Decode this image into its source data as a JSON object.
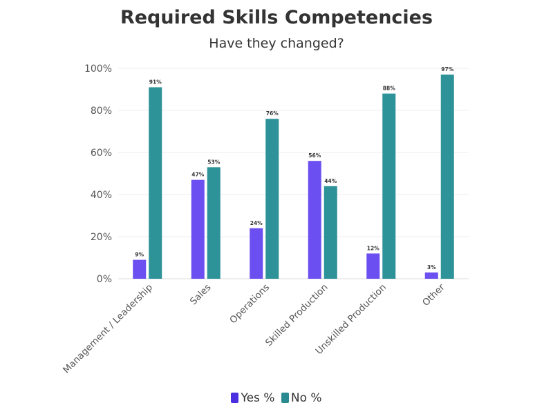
{
  "chart_data": {
    "type": "bar",
    "title": "Required Skills Competencies",
    "subtitle": "Have they changed?",
    "categories": [
      "Management / Leadership",
      "Sales",
      "Operations",
      "Skilled Production",
      "Unskilled Production",
      "Other"
    ],
    "series": [
      {
        "name": "Yes %",
        "color": "#6c4ff0",
        "values": [
          9,
          47,
          24,
          56,
          12,
          3
        ],
        "labels": [
          "9%",
          "47%",
          "24%",
          "56%",
          "12%",
          "3%"
        ]
      },
      {
        "name": "No %",
        "color": "#2e9299",
        "values": [
          91,
          53,
          76,
          44,
          88,
          97
        ],
        "labels": [
          "91%",
          "53%",
          "76%",
          "44%",
          "88%",
          "97%"
        ]
      }
    ],
    "y_ticks": [
      "0%",
      "20%",
      "40%",
      "60%",
      "80%",
      "100%"
    ],
    "ylim": [
      0,
      100
    ],
    "grid": true,
    "legend_position": "bottom-center"
  },
  "legend": {
    "yes_label": "Yes %",
    "no_label": "No %",
    "yes_color": "#4a2fe0",
    "no_color": "#2a8a92"
  }
}
